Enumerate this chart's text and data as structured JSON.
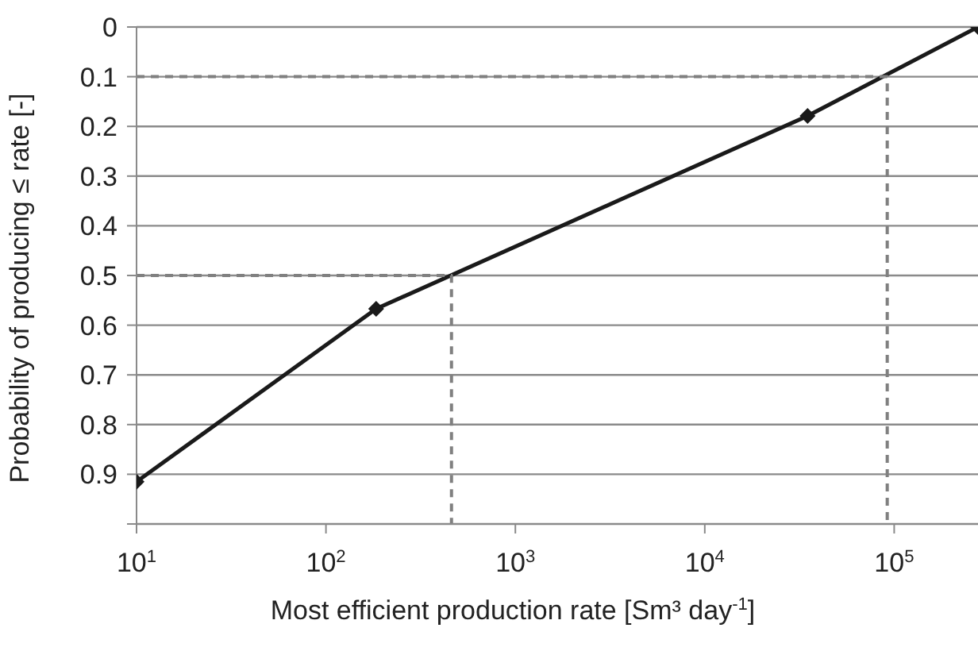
{
  "chart_data": {
    "type": "line",
    "xlabel": "Most efficient production rate [Sm³ day$^{-1}$]",
    "ylabel": "Probability of producing ≤ rate [-]",
    "log": "x",
    "xlim": [
      10,
      277000
    ],
    "xticks": [
      {
        "value": 10,
        "label": "10$^{1}$"
      },
      {
        "value": 100,
        "label": "10$^{2}$"
      },
      {
        "value": 1000,
        "label": "10$^{3}$"
      },
      {
        "value": 10000,
        "label": "10$^{4}$"
      },
      {
        "value": 100000,
        "label": "10$^{5}$"
      }
    ],
    "ylim": [
      1,
      0
    ],
    "yticks": [
      0,
      0.1,
      0.2,
      0.3,
      0.4,
      0.5,
      0.6,
      0.7,
      0.8,
      0.9,
      {
        "value": 1,
        "label": null
      }
    ],
    "grid": "y",
    "series": [
      {
        "color": "#1a1a1a",
        "marker": "diamond",
        "line_style": "solid",
        "x": [
          10,
          184,
          34900,
          277000
        ],
        "values": [
          0.915,
          0.567,
          0.179,
          0
        ]
      },
      {
        "color": "#808080",
        "marker": "none",
        "line_style": "dashed",
        "x": [
          10,
          460,
          460
        ],
        "values": [
          0.5,
          0.5,
          1
        ]
      },
      {
        "color": "#808080",
        "marker": "none",
        "line_style": "dashed",
        "x": [
          10,
          91900,
          91900
        ],
        "values": [
          0.1,
          0.1,
          1
        ]
      }
    ]
  }
}
